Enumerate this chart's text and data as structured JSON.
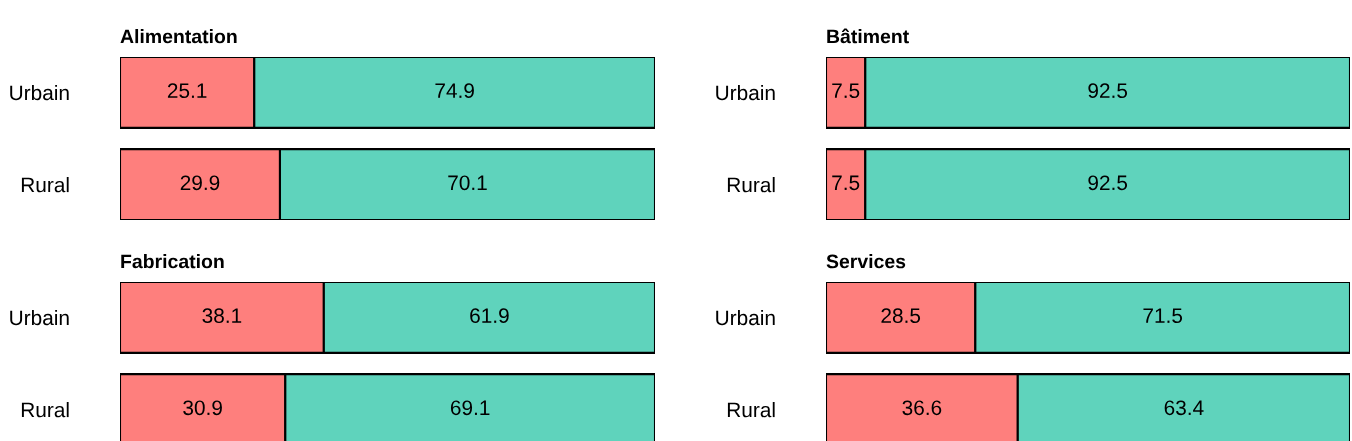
{
  "chart_data": [
    {
      "type": "bar",
      "title": "Alimentation",
      "orientation": "horizontal",
      "stacked": true,
      "data_labels": true,
      "tick_labels": "y",
      "xlim": [
        0,
        100
      ],
      "categories": [
        "Urbain",
        "Rural"
      ],
      "series": [
        {
          "color": "#fe7f7d",
          "values": [
            25.1,
            29.9
          ]
        },
        {
          "color": "#5fd3bc",
          "values": [
            74.9,
            70.1
          ]
        }
      ]
    },
    {
      "type": "bar",
      "title": "Bâtiment",
      "orientation": "horizontal",
      "stacked": true,
      "data_labels": true,
      "tick_labels": "y",
      "xlim": [
        0,
        100
      ],
      "categories": [
        "Urbain",
        "Rural"
      ],
      "series": [
        {
          "color": "#fe7f7d",
          "values": [
            7.5,
            7.5
          ]
        },
        {
          "color": "#5fd3bc",
          "values": [
            92.5,
            92.5
          ]
        }
      ]
    },
    {
      "type": "bar",
      "title": "Fabrication",
      "orientation": "horizontal",
      "stacked": true,
      "data_labels": true,
      "tick_labels": "y",
      "xlim": [
        0,
        100
      ],
      "categories": [
        "Urbain",
        "Rural"
      ],
      "series": [
        {
          "color": "#fe7f7d",
          "values": [
            38.1,
            30.9
          ]
        },
        {
          "color": "#5fd3bc",
          "values": [
            61.9,
            69.1
          ]
        }
      ]
    },
    {
      "type": "bar",
      "title": "Services",
      "orientation": "horizontal",
      "stacked": true,
      "data_labels": true,
      "tick_labels": "y",
      "xlim": [
        0,
        100
      ],
      "categories": [
        "Urbain",
        "Rural"
      ],
      "series": [
        {
          "color": "#fe7f7d",
          "values": [
            28.5,
            36.6
          ]
        },
        {
          "color": "#5fd3bc",
          "values": [
            71.5,
            63.4
          ]
        }
      ]
    }
  ]
}
